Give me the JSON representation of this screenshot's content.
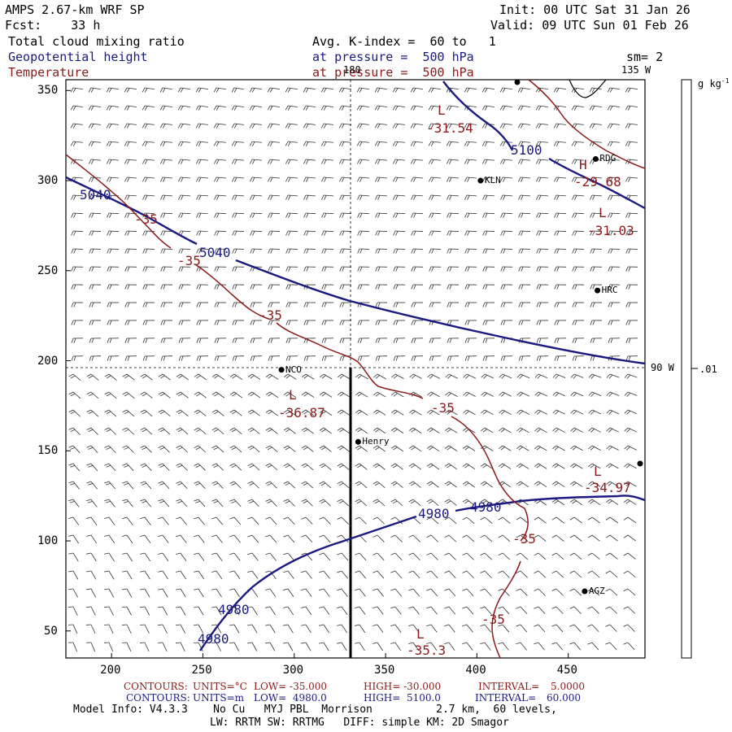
{
  "header": {
    "model": "AMPS 2.67-km WRF SP",
    "fcst": "Fcst:    33 h",
    "init": "Init: 00 UTC Sat 31 Jan 26",
    "valid": "Valid: 09 UTC Sun 01 Feb 26",
    "field1": "Total cloud mixing ratio",
    "field1_info": "Avg. K-index =  60 to   1",
    "field2": "Geopotential height",
    "field2_info": "at pressure =  500 hPa",
    "field3": "Temperature",
    "field3_info": "at pressure =  500 hPa",
    "smoothing": "sm= 2"
  },
  "map": {
    "longitude_labels": {
      "top_180": "180",
      "top_135w": "135 W",
      "right_90w": "90 W"
    },
    "x_ticks": [
      "200",
      "250",
      "300",
      "350",
      "400",
      "450"
    ],
    "y_ticks": [
      "350",
      "300",
      "250",
      "200",
      "150",
      "100",
      "50"
    ],
    "stations": [
      {
        "name": "RDG",
        "x": 465,
        "y": 312
      },
      {
        "name": "KLN",
        "x": 402,
        "y": 300
      },
      {
        "name": "HRC",
        "x": 466,
        "y": 239
      },
      {
        "name": "NCO",
        "x": 293,
        "y": 195
      },
      {
        "name": "Henry",
        "x": 335,
        "y": 155
      },
      {
        "name": "AGZ",
        "x": 459,
        "y": 72
      }
    ],
    "contour_labels": {
      "height": [
        "5040",
        "5040",
        "5100",
        "4980",
        "4980",
        "4980",
        "4980"
      ],
      "temperature": [
        "-35",
        "-35",
        "-35",
        "-35",
        "-35",
        "-35"
      ],
      "extrema": [
        {
          "type": "L",
          "value": "-31.54"
        },
        {
          "type": "H",
          "value": "-29.68"
        },
        {
          "type": "L",
          "value": "-31.03"
        },
        {
          "type": "L",
          "value": "-36.87"
        },
        {
          "type": "L",
          "value": "-34.97"
        },
        {
          "type": "L",
          "value": "-35.3"
        }
      ]
    }
  },
  "colorbar": {
    "units": "g kg",
    "units_sup": "-1",
    "tick_label": ".01"
  },
  "footer": {
    "t_contours": "CONTOURS:",
    "t_units": "UNITS=°C",
    "t_low": "LOW= -35.000",
    "t_high": "HIGH= -30.000",
    "t_interval": "INTERVAL=",
    "t_interval_val": "5.0000",
    "h_contours": "CONTOURS:",
    "h_units": "UNITS=m",
    "h_low": "LOW=  4980.0",
    "h_high": "HIGH=  5100.0",
    "h_interval": "INTERVAL=",
    "h_interval_val": "60.000",
    "model_info": "Model Info: V4.3.3    No Cu   MYJ PBL  Morrison          2.7 km,  60 levels,",
    "model_info2": "LW: RRTM SW: RRTMG   DIFF: simple KM: 2D Smagor"
  },
  "colors": {
    "height_contour": "#1a1a80",
    "temperature_contour": "#8b1a1a",
    "barb": "#000000"
  }
}
